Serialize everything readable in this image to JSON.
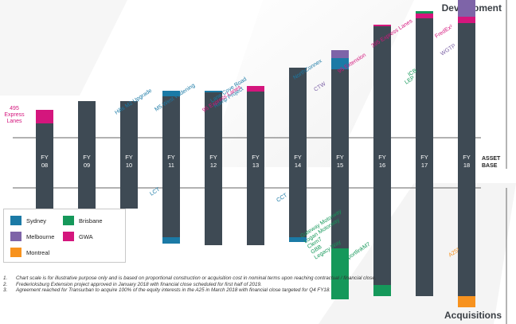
{
  "header": {
    "top_title": "Development",
    "bottom_title": "Acquisitions"
  },
  "legend": {
    "items": [
      {
        "key": "sydney",
        "label": "Sydney",
        "color": "#1b7aa6"
      },
      {
        "key": "brisbane",
        "label": "Brisbane",
        "color": "#15985a"
      },
      {
        "key": "melbourne",
        "label": "Melbourne",
        "color": "#7e64a8"
      },
      {
        "key": "gwa",
        "label": "GWA",
        "color": "#d4167d"
      },
      {
        "key": "montreal",
        "label": "Montreal",
        "color": "#f7921e"
      }
    ]
  },
  "notes": [
    {
      "num": "1.",
      "text": "Chart scale is for illustrative purpose only and is based on proportional construction or acquisition cost in nominal terms upon reaching contractual / financial close."
    },
    {
      "num": "2.",
      "text": "Fredericksburg Extension project approved in January 2018 with financial close scheduled for first half of 2019."
    },
    {
      "num": "3.",
      "text": "Agreement reached for Transurban to acquire 100% of the equity interests in the A25 in March 2018 with financial close targeted for Q4 FY18."
    }
  ],
  "chart_data": {
    "type": "bar",
    "categories": [
      "FY\n08",
      "FY\n09",
      "FY\n10",
      "FY\n11",
      "FY\n12",
      "FY\n13",
      "FY\n14",
      "FY\n15",
      "FY\n16",
      "FY\n17",
      "FY\n18"
    ],
    "asset_base_label": "ASSET\nBASE",
    "asset_base_above": [
      18,
      46,
      46,
      52,
      57,
      58,
      88,
      86,
      140,
      150,
      144
    ],
    "asset_base_below": [
      26,
      26,
      26,
      62,
      72,
      72,
      62,
      76,
      122,
      136,
      136
    ],
    "series": [
      {
        "name": "Sydney",
        "direction": "development",
        "values": [
          0,
          0,
          0,
          7,
          2,
          0,
          0,
          14,
          0,
          0,
          0
        ]
      },
      {
        "name": "Melbourne",
        "direction": "development",
        "values": [
          0,
          0,
          0,
          0,
          0,
          0,
          0,
          10,
          0,
          0,
          0
        ]
      },
      {
        "name": "GWA",
        "direction": "development",
        "values": [
          17,
          0,
          0,
          0,
          0,
          7,
          0,
          0,
          2,
          6,
          8
        ]
      },
      {
        "name": "Brisbane",
        "direction": "development",
        "values": [
          0,
          0,
          0,
          0,
          0,
          0,
          0,
          0,
          0,
          3,
          0
        ]
      },
      {
        "name": "Melbourne",
        "direction": "development",
        "values": [
          0,
          0,
          0,
          0,
          0,
          0,
          0,
          0,
          0,
          0,
          46
        ]
      },
      {
        "name": "Sydney",
        "direction": "acquisition",
        "values": [
          0,
          0,
          0,
          8,
          0,
          0,
          6,
          0,
          0,
          0,
          0
        ]
      },
      {
        "name": "Brisbane",
        "direction": "acquisition",
        "values": [
          0,
          0,
          0,
          0,
          0,
          0,
          0,
          64,
          14,
          0,
          0
        ]
      },
      {
        "name": "Montreal",
        "direction": "acquisition",
        "values": [
          0,
          0,
          0,
          0,
          0,
          0,
          0,
          0,
          0,
          0,
          14
        ]
      }
    ],
    "annotations": {
      "development": [
        {
          "fy": 0,
          "text": "495\nExpress\nLanes",
          "color": "#d4167d",
          "angle": 0
        },
        {
          "fy": 3,
          "text": "Hills M2 Upgrade",
          "color": "#1b7aa6",
          "angle": -33
        },
        {
          "fy": 4,
          "text": "M5 West Widening",
          "color": "#1b7aa6",
          "angle": -33
        },
        {
          "fy": 5,
          "text": "Lane Cove Road\nRamp Project",
          "color": "#1b7aa6",
          "angle": -33
        },
        {
          "fy": 5,
          "text": "95 Express Lanes",
          "color": "#d4167d",
          "angle": -33
        },
        {
          "fy": 7,
          "text": "NorthConnex",
          "color": "#1b7aa6",
          "angle": -33
        },
        {
          "fy": 7,
          "text": "CTW",
          "color": "#7e64a8",
          "angle": -33
        },
        {
          "fy": 8,
          "text": "95 Extension",
          "color": "#d4167d",
          "angle": -33
        },
        {
          "fy": 9,
          "text": "395 Express Lanes",
          "color": "#d4167d",
          "angle": -33
        },
        {
          "fy": 9,
          "text": "ICB",
          "color": "#15985a",
          "angle": -33
        },
        {
          "fy": 9,
          "text": "LEP",
          "color": "#15985a",
          "angle": -33
        },
        {
          "fy": 10,
          "text": "FredEx²",
          "color": "#d4167d",
          "angle": -33
        },
        {
          "fy": 10,
          "text": "WGTP",
          "color": "#7e64a8",
          "angle": -33
        }
      ],
      "acquisition": [
        {
          "fy": 3,
          "text": "LCT",
          "color": "#1b7aa6",
          "angle": -33
        },
        {
          "fy": 6,
          "text": "CCT",
          "color": "#1b7aa6",
          "angle": -33
        },
        {
          "fy": 7,
          "text": "Gateway Motorway\nLogan Motorway\nClem7\nGBB\nLegacy Way",
          "color": "#15985a",
          "angle": -33
        },
        {
          "fy": 8,
          "text": "AirportlinkM7",
          "color": "#15985a",
          "angle": -33
        },
        {
          "fy": 10,
          "text": "A25³",
          "color": "#f7921e",
          "angle": -33
        }
      ]
    }
  }
}
